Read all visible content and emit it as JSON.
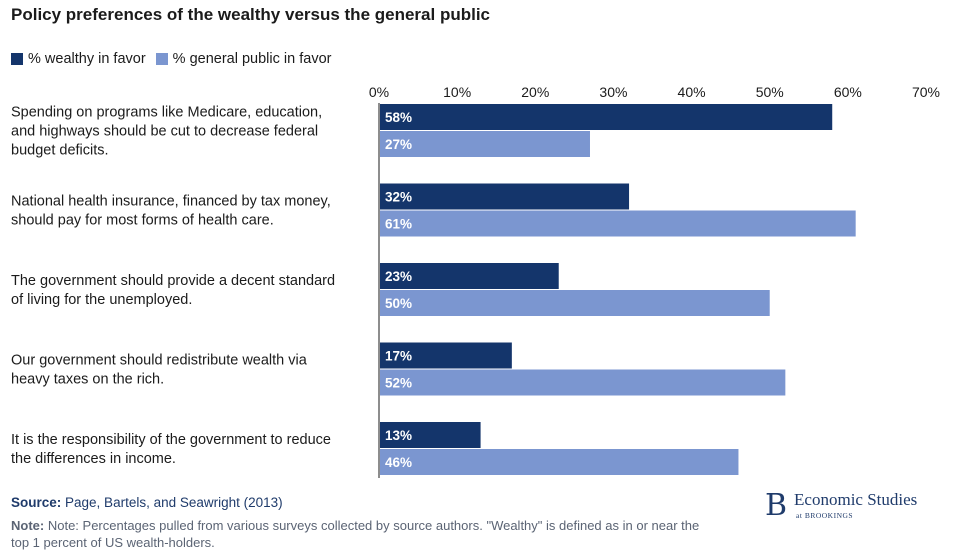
{
  "title": "Policy preferences of the wealthy versus the general public",
  "legend": [
    {
      "label": "% wealthy in favor",
      "color": "#14356b"
    },
    {
      "label": "% general public in favor",
      "color": "#7b96d0"
    }
  ],
  "source": {
    "label": "Source:",
    "text": "Page, Bartels, and Seawright (2013)"
  },
  "note": {
    "label": "Note:",
    "text": "Note: Percentages pulled from various surveys collected by source authors. \"Wealthy\" is defined as in or near the top 1 percent of US wealth-holders."
  },
  "logo": {
    "letter": "B",
    "name": "Economic Studies",
    "sub": "at BROOKINGS"
  },
  "chart_data": {
    "type": "bar",
    "orientation": "horizontal",
    "categories": [
      [
        "Spending on programs like Medicare, education,",
        "and highways should be cut to decrease federal",
        "budget deficits."
      ],
      [
        "National health insurance, financed by tax money,",
        "should pay for most forms of health care."
      ],
      [
        "The government should provide a decent standard",
        "of living for the unemployed."
      ],
      [
        "Our government should redistribute wealth via",
        "heavy taxes on the rich."
      ],
      [
        "It is the responsibility of the government to reduce",
        "the differences in income."
      ]
    ],
    "series": [
      {
        "name": "% wealthy in favor",
        "values": [
          58,
          32,
          23,
          17,
          13
        ],
        "color": "#14356b"
      },
      {
        "name": "% general public in favor",
        "values": [
          27,
          61,
          50,
          52,
          46
        ],
        "color": "#7b96d0"
      }
    ],
    "xlim": [
      0,
      70
    ],
    "ticks": [
      0,
      10,
      20,
      30,
      40,
      50,
      60,
      70
    ],
    "tick_labels": [
      "0%",
      "10%",
      "20%",
      "30%",
      "40%",
      "50%",
      "60%",
      "70%"
    ],
    "value_suffix": "%",
    "axis_position": "top",
    "grid": false,
    "legend_position": "top-left"
  }
}
